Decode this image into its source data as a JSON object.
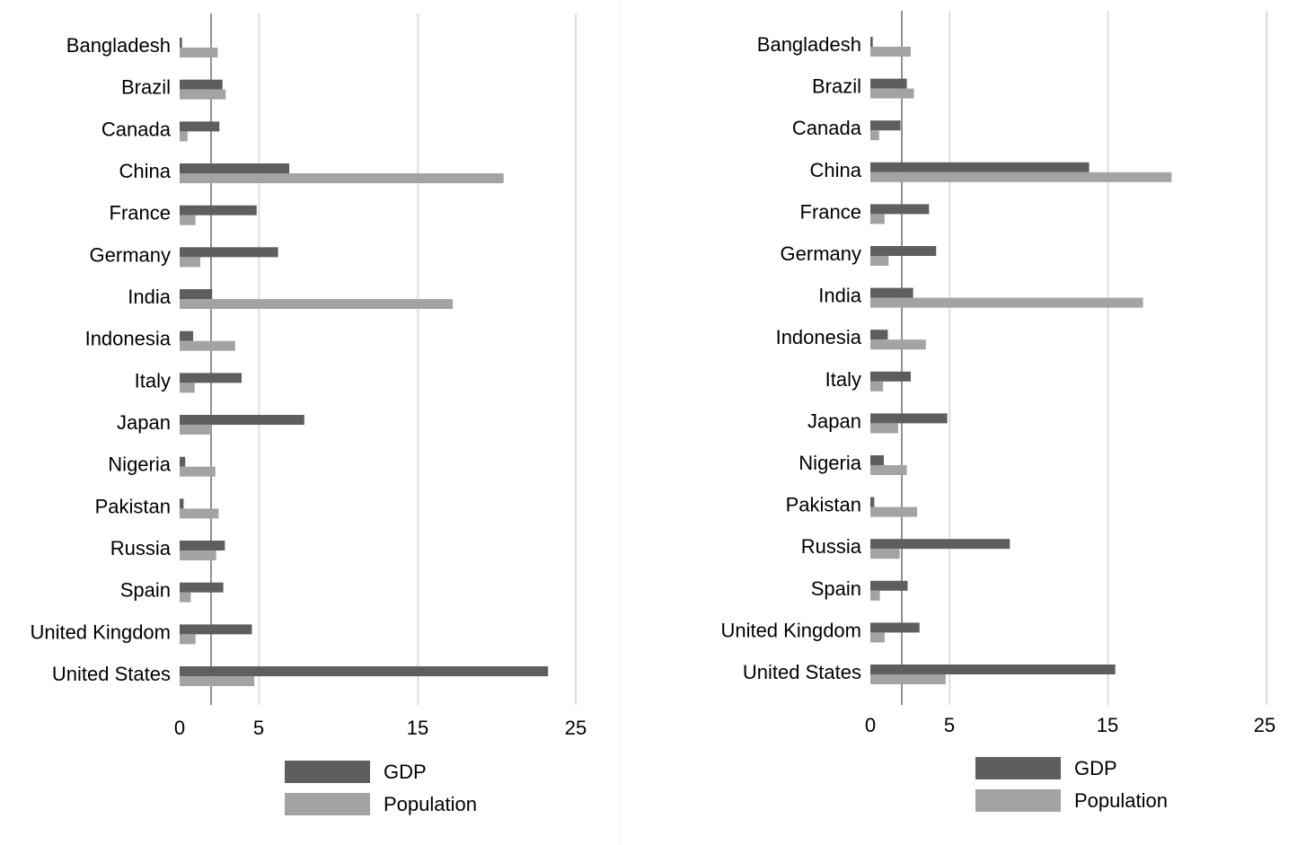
{
  "chart_data": [
    {
      "type": "bar",
      "orientation": "horizontal",
      "categories": [
        "Bangladesh",
        "Brazil",
        "Canada",
        "China",
        "France",
        "Germany",
        "India",
        "Indonesia",
        "Italy",
        "Japan",
        "Nigeria",
        "Pakistan",
        "Russia",
        "Spain",
        "United Kingdom",
        "United States"
      ],
      "series": [
        {
          "name": "GDP",
          "color": "#5e5e5e",
          "values": [
            0.15,
            2.7,
            2.5,
            6.9,
            4.85,
            6.2,
            2.05,
            0.85,
            3.9,
            7.85,
            0.35,
            0.25,
            2.85,
            2.75,
            4.55,
            23.2
          ]
        },
        {
          "name": "Population",
          "color": "#a3a3a3",
          "values": [
            2.4,
            2.9,
            0.5,
            20.4,
            1.0,
            1.3,
            17.2,
            3.5,
            0.95,
            2.0,
            2.25,
            2.45,
            2.3,
            0.7,
            1.0,
            4.7
          ]
        }
      ],
      "x_ticks": [
        "0",
        "5",
        "15",
        "25"
      ],
      "xlim": [
        0,
        25
      ],
      "gridlines_at": [
        5,
        15,
        25
      ],
      "reference_line_at": 2,
      "legend_position": "bottom",
      "title": "",
      "xlabel": "",
      "ylabel": ""
    },
    {
      "type": "bar",
      "orientation": "horizontal",
      "categories": [
        "Bangladesh",
        "Brazil",
        "Canada",
        "China",
        "France",
        "Germany",
        "India",
        "Indonesia",
        "Italy",
        "Japan",
        "Nigeria",
        "Pakistan",
        "Russia",
        "Spain",
        "United Kingdom",
        "United States"
      ],
      "series": [
        {
          "name": "GDP",
          "color": "#5e5e5e",
          "values": [
            0.15,
            2.3,
            1.9,
            13.8,
            3.7,
            4.15,
            2.7,
            1.1,
            2.55,
            4.85,
            0.85,
            0.25,
            8.8,
            2.35,
            3.1,
            15.45
          ]
        },
        {
          "name": "Population",
          "color": "#a3a3a3",
          "values": [
            2.55,
            2.75,
            0.55,
            19.0,
            0.9,
            1.15,
            17.2,
            3.5,
            0.8,
            1.75,
            2.3,
            2.95,
            1.85,
            0.6,
            0.9,
            4.75
          ]
        }
      ],
      "x_ticks": [
        "0",
        "5",
        "15",
        "25"
      ],
      "xlim": [
        0,
        25
      ],
      "gridlines_at": [
        5,
        15,
        25
      ],
      "reference_line_at": 2,
      "legend_position": "bottom",
      "title": "",
      "xlabel": "",
      "ylabel": ""
    }
  ]
}
